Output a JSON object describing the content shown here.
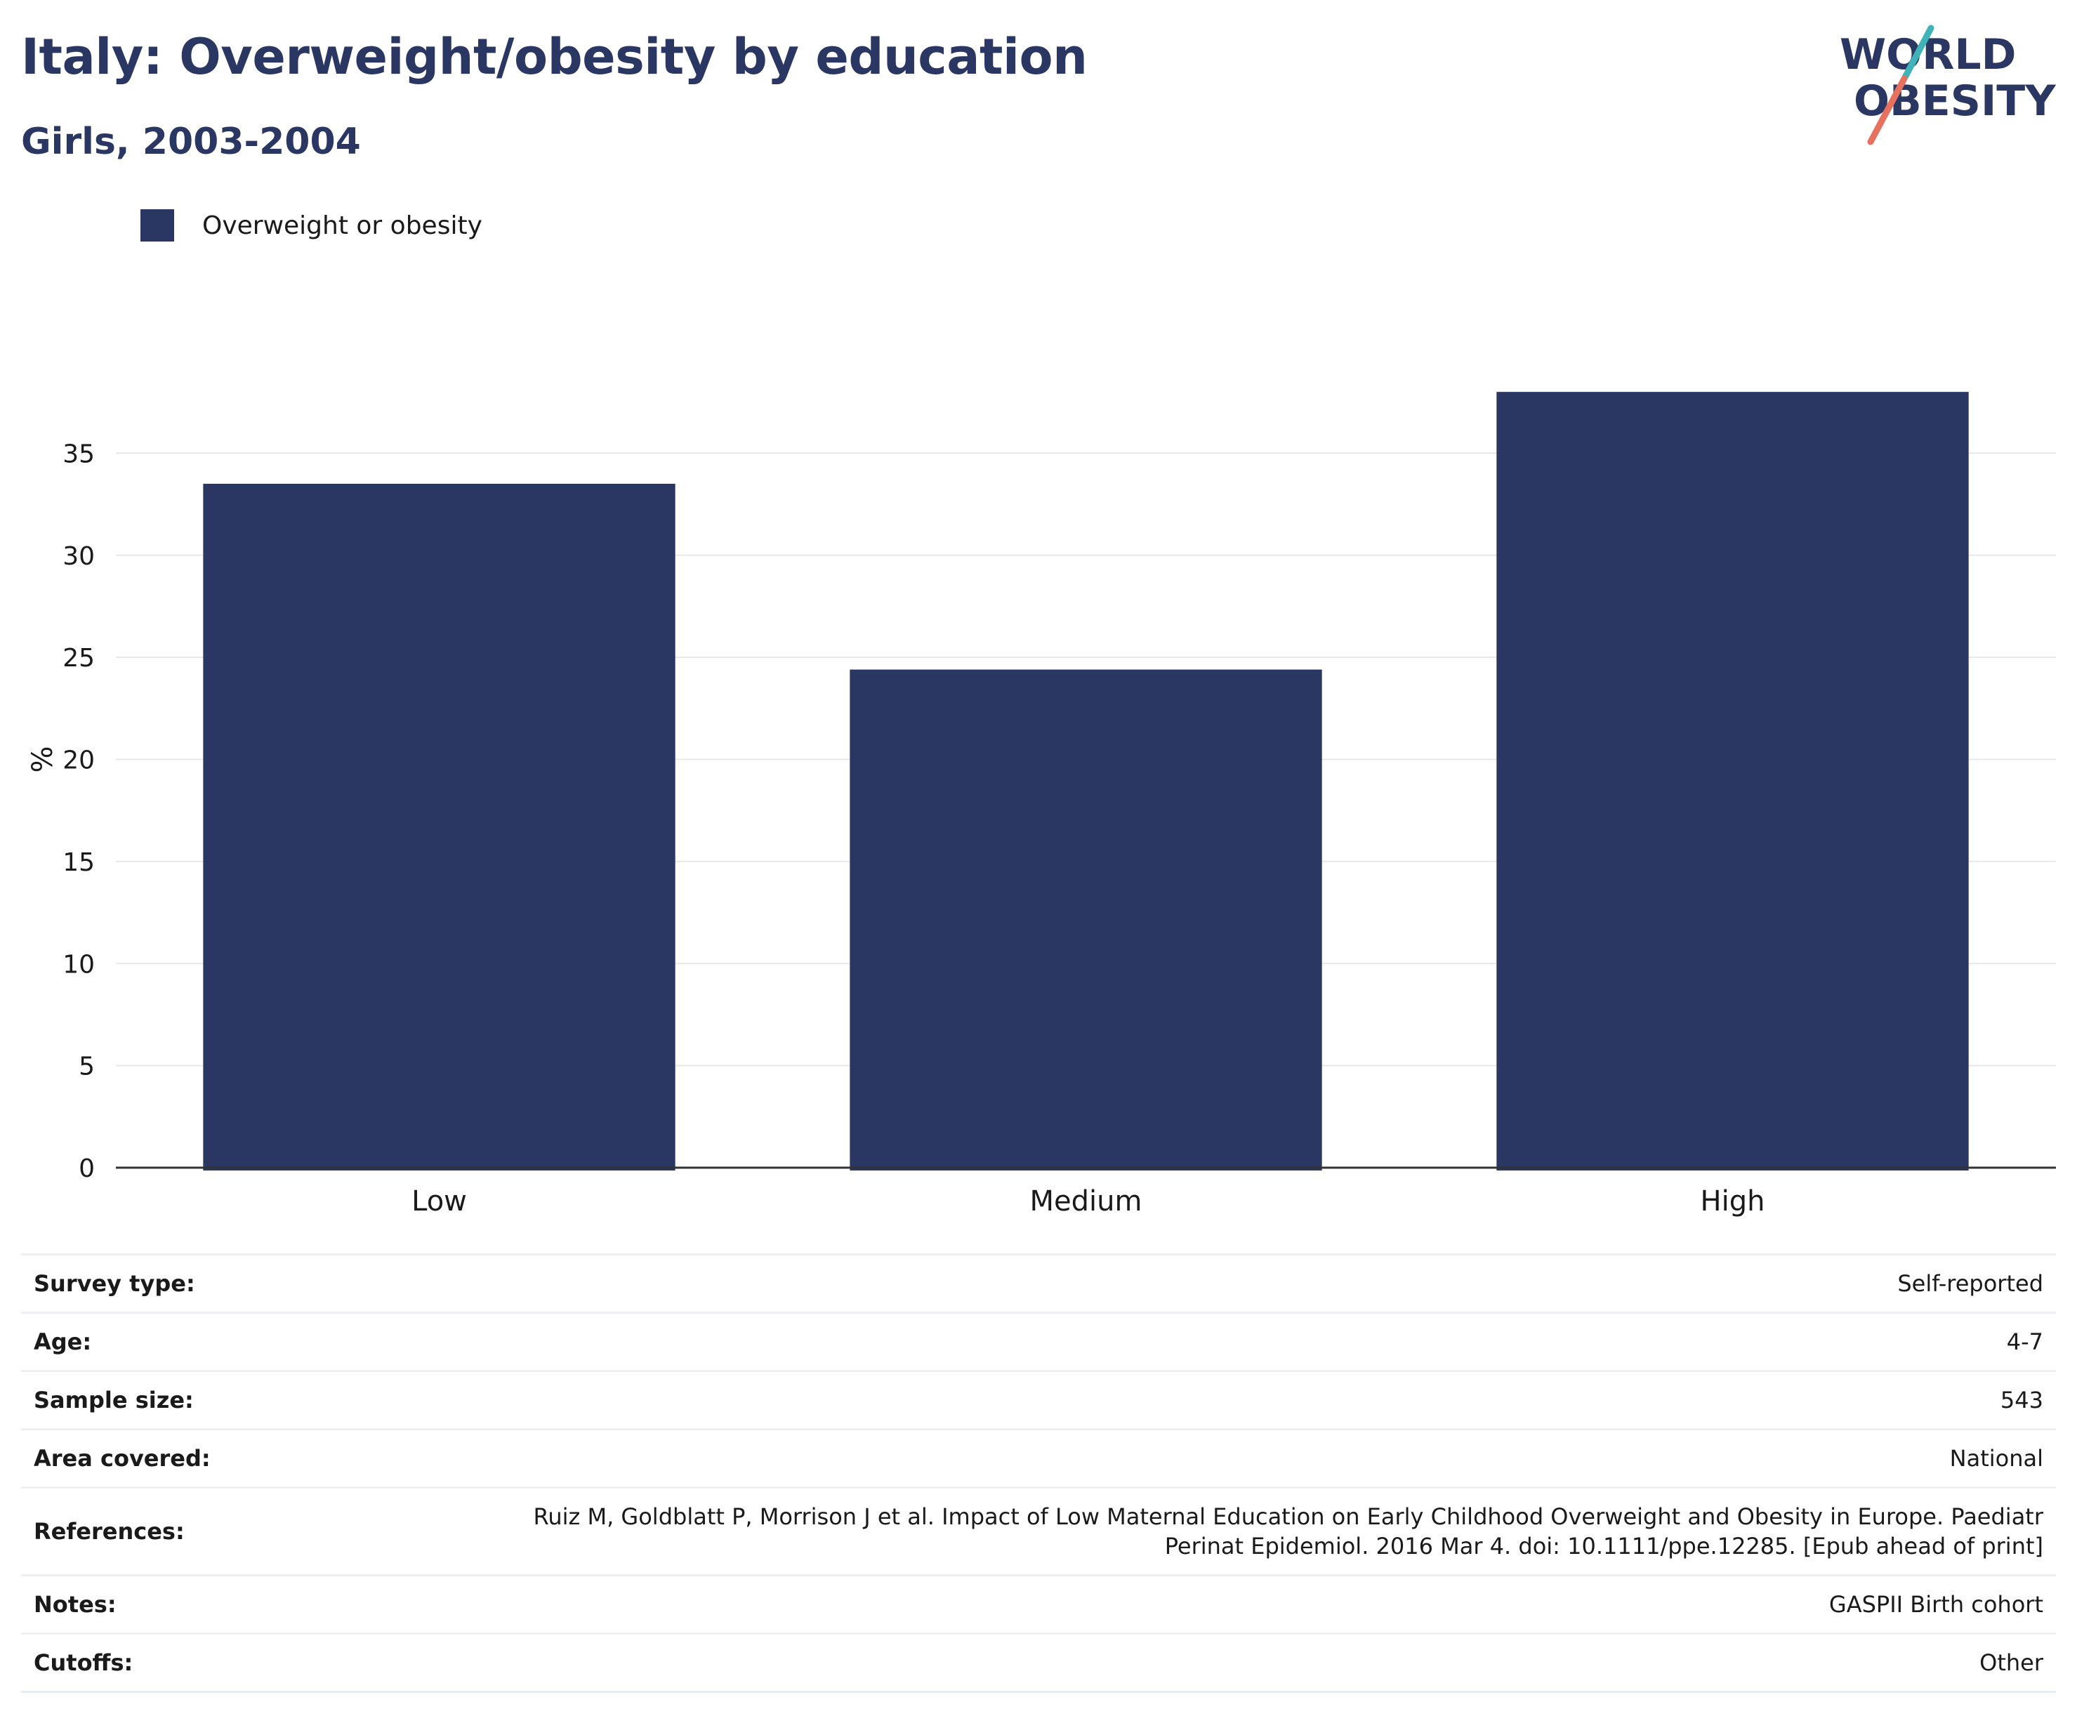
{
  "header": {
    "title": "Italy: Overweight/obesity by education",
    "subtitle": "Girls, 2003-2004"
  },
  "logo": {
    "line1": "WORLD",
    "line2": "OBESITY",
    "text_color": "#2b3763",
    "slash_colors": [
      "#3fb3b7",
      "#e8705f"
    ]
  },
  "colors": {
    "bar": "#2b3763",
    "grid": "#e8e8e8",
    "axis": "#333333"
  },
  "chart_data": {
    "type": "bar",
    "categories": [
      "Low",
      "Medium",
      "High"
    ],
    "series": [
      {
        "name": "Overweight or obesity",
        "values": [
          33.5,
          24.4,
          38.0
        ]
      }
    ],
    "ylabel": "%",
    "ylim": [
      0,
      40
    ],
    "yticks": [
      0,
      5,
      10,
      15,
      20,
      25,
      30,
      35
    ],
    "grid": true,
    "legend_position": "top-left"
  },
  "info": [
    {
      "key": "Survey type:",
      "value": "Self-reported"
    },
    {
      "key": "Age:",
      "value": "4-7"
    },
    {
      "key": "Sample size:",
      "value": "543"
    },
    {
      "key": "Area covered:",
      "value": "National"
    },
    {
      "key": "References:",
      "value": "Ruiz M, Goldblatt P, Morrison J et al. Impact of Low Maternal Education on Early Childhood Overweight and Obesity in Europe. Paediatr Perinat Epidemiol. 2016 Mar 4. doi: 10.1111/ppe.12285. [Epub ahead of print]"
    },
    {
      "key": "Notes:",
      "value": "GASPII Birth cohort"
    },
    {
      "key": "Cutoffs:",
      "value": "Other"
    }
  ]
}
